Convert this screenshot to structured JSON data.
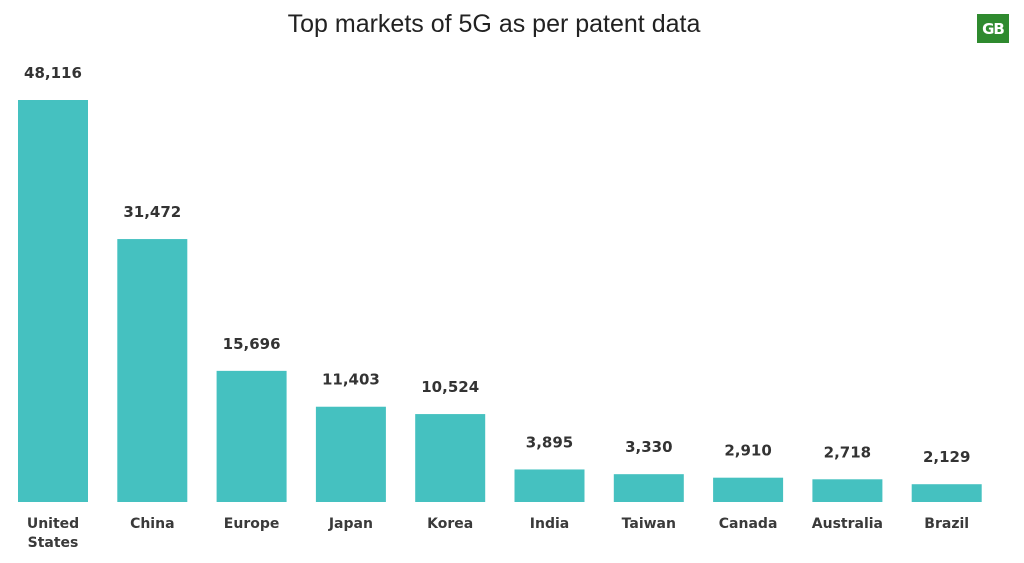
{
  "chart_data": {
    "type": "bar",
    "title": "Top markets of 5G as per patent data",
    "categories": [
      "United States",
      "China",
      "Europe",
      "Japan",
      "Korea",
      "India",
      "Taiwan",
      "Canada",
      "Australia",
      "Brazil"
    ],
    "values": [
      48116,
      31472,
      15696,
      11403,
      10524,
      3895,
      3330,
      2910,
      2718,
      2129
    ],
    "value_labels": [
      "48,116",
      "31,472",
      "15,696",
      "11,403",
      "10,524",
      "3,895",
      "3,330",
      "2,910",
      "2,718",
      "2,129"
    ],
    "xlabel": "",
    "ylabel": "",
    "ylim": [
      0,
      48116
    ],
    "grid": false,
    "bar_color": "#45c1c0"
  },
  "logo": {
    "text": "GB",
    "color": "#2f8a2f"
  }
}
